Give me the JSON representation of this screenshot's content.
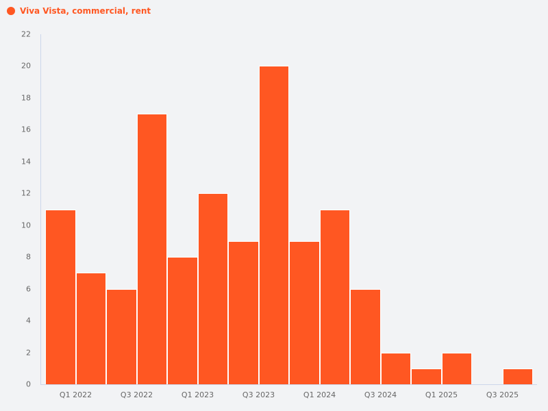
{
  "legend": {
    "label": "Viva Vista, commercial, rent",
    "color": "#ff5722"
  },
  "chart_data": {
    "type": "bar",
    "title": "",
    "xlabel": "",
    "ylabel": "",
    "series": [
      {
        "name": "Viva Vista, commercial, rent",
        "color": "#ff5722",
        "values": [
          11,
          7,
          6,
          17,
          8,
          12,
          9,
          20,
          9,
          11,
          6,
          2,
          1,
          2,
          0,
          1
        ]
      }
    ],
    "categories": [
      "Q4 2021",
      "Q1 2022",
      "Q2 2022",
      "Q3 2022",
      "Q4 2022",
      "Q1 2023",
      "Q2 2023",
      "Q3 2023",
      "Q4 2023",
      "Q1 2024",
      "Q2 2024",
      "Q3 2024",
      "Q4 2024",
      "Q1 2025",
      "Q2 2025",
      "Q3 2025"
    ],
    "x_tick_labels": [
      "Q1 2022",
      "Q3 2022",
      "Q1 2023",
      "Q3 2023",
      "Q1 2024",
      "Q3 2024",
      "Q1 2025",
      "Q3 2025"
    ],
    "y_tick_labels": [
      "0",
      "2",
      "4",
      "6",
      "8",
      "10",
      "12",
      "14",
      "16",
      "18",
      "20",
      "22"
    ],
    "ylim": [
      0,
      22
    ],
    "grid": false,
    "legend_position": "top-left"
  }
}
